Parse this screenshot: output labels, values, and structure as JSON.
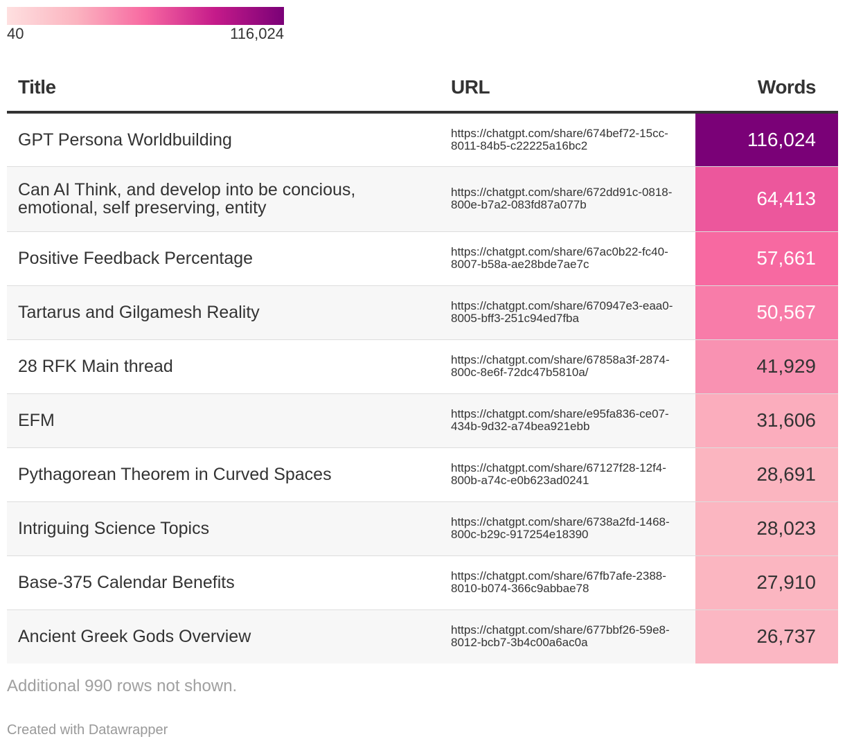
{
  "legend": {
    "min_label": "40",
    "max_label": "116,024",
    "min_value": 40,
    "max_value": 116024,
    "colors": [
      "#fee0e0",
      "#fbb4c0",
      "#f768a1",
      "#c51b8a",
      "#7a0177"
    ]
  },
  "chart_data": {
    "type": "table",
    "columns": [
      "Title",
      "URL",
      "Words"
    ],
    "rows": [
      {
        "title": "GPT Persona Worldbuilding",
        "url": "https://chatgpt.com/share/674bef72-15cc-8011-84b5-c22225a16bc2",
        "words_label": "116,024",
        "words": 116024
      },
      {
        "title": "Can AI Think, and develop into be concious, emotional, self preserving, entity",
        "url": "https://chatgpt.com/share/672dd91c-0818-800e-b7a2-083fd87a077b",
        "words_label": "64,413",
        "words": 64413
      },
      {
        "title": "Positive Feedback Percentage",
        "url": "https://chatgpt.com/share/67ac0b22-fc40-8007-b58a-ae28bde7ae7c",
        "words_label": "57,661",
        "words": 57661
      },
      {
        "title": "Tartarus and Gilgamesh Reality",
        "url": "https://chatgpt.com/share/670947e3-eaa0-8005-bff3-251c94ed7fba",
        "words_label": "50,567",
        "words": 50567
      },
      {
        "title": "28 RFK Main thread",
        "url": "https://chatgpt.com/share/67858a3f-2874-800c-8e6f-72dc47b5810a/",
        "words_label": "41,929",
        "words": 41929
      },
      {
        "title": "EFM",
        "url": "https://chatgpt.com/share/e95fa836-ce07-434b-9d32-a74bea921ebb",
        "words_label": "31,606",
        "words": 31606
      },
      {
        "title": "Pythagorean Theorem in Curved Spaces",
        "url": "https://chatgpt.com/share/67127f28-12f4-800b-a74c-e0b623ad0241",
        "words_label": "28,691",
        "words": 28691
      },
      {
        "title": "Intriguing Science Topics",
        "url": "https://chatgpt.com/share/6738a2fd-1468-800c-b29c-917254e18390",
        "words_label": "28,023",
        "words": 28023
      },
      {
        "title": "Base-375 Calendar Benefits",
        "url": "https://chatgpt.com/share/67fb7afe-2388-8010-b074-366c9abbae78",
        "words_label": "27,910",
        "words": 27910
      },
      {
        "title": "Ancient Greek Gods Overview",
        "url": "https://chatgpt.com/share/677bbf26-59e8-8012-bcb7-3b4c00a6ac0a",
        "words_label": "26,737",
        "words": 26737
      }
    ]
  },
  "notes": "Additional 990 rows not shown.",
  "credit": "Created with Datawrapper"
}
